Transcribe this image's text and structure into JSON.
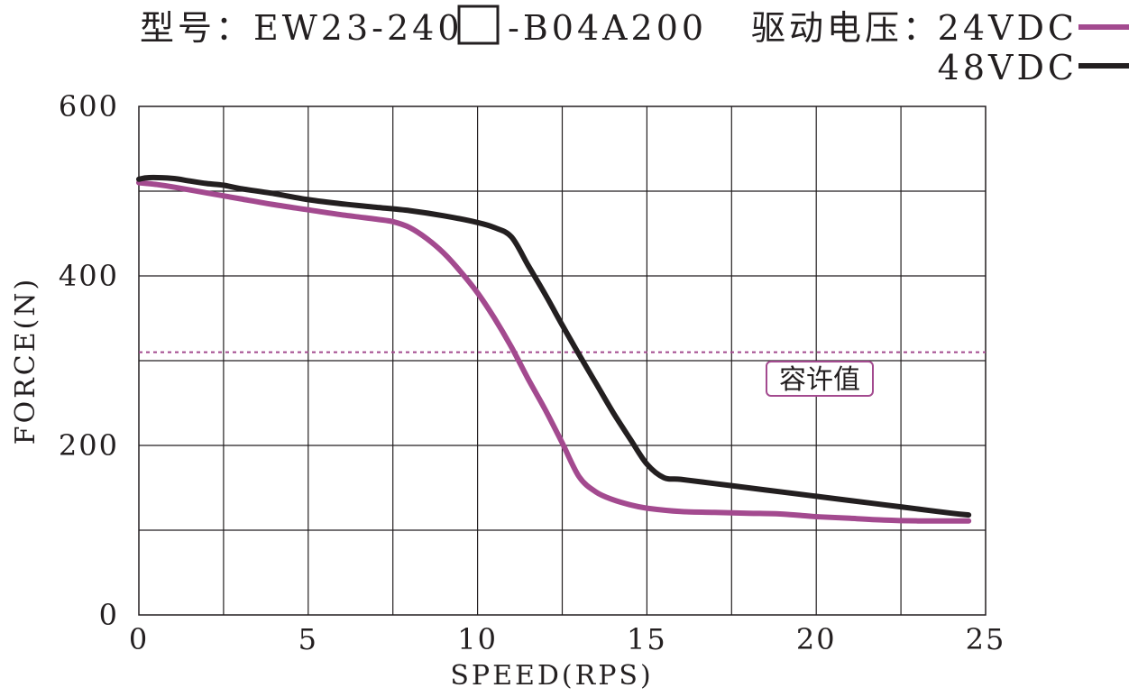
{
  "chart_data": {
    "type": "line",
    "title": {
      "model_prefix": "型号：EW23-240",
      "model_suffix": "-B04A200",
      "voltage_label": "驱动电压："
    },
    "xlabel": "SPEED(RPS)",
    "ylabel": "FORCE(N)",
    "xlim": [
      0,
      25
    ],
    "ylim": [
      0,
      600
    ],
    "x_ticks": [
      0,
      5,
      10,
      15,
      20,
      25
    ],
    "y_ticks": [
      0,
      200,
      400,
      600
    ],
    "x_tick_labels": [
      "0",
      "5",
      "10",
      "15",
      "20",
      "25"
    ],
    "y_tick_labels": [
      "0",
      "200",
      "400",
      "600"
    ],
    "grid": true,
    "grid_x_step": 2.5,
    "grid_y_step": 100,
    "legend_position": "top-right",
    "series": [
      {
        "name": "24VDC",
        "color": "#a34a8f",
        "x": [
          0,
          0.5,
          1,
          2,
          3,
          4,
          5,
          6,
          7,
          7.5,
          8,
          8.5,
          9,
          9.5,
          10,
          10.5,
          11,
          11.5,
          12,
          12.5,
          13,
          13.5,
          14,
          14.5,
          15,
          16,
          17,
          18,
          19,
          20,
          21,
          22,
          23,
          24,
          24.5
        ],
        "values": [
          510,
          508,
          505,
          498,
          491,
          484,
          478,
          472,
          467,
          464,
          457,
          444,
          427,
          405,
          380,
          350,
          316,
          278,
          242,
          203,
          163,
          145,
          136,
          130,
          126,
          122,
          121,
          120,
          119,
          116,
          114,
          112,
          111,
          111,
          111
        ]
      },
      {
        "name": "48VDC",
        "color": "#231f20",
        "x": [
          0,
          0.3,
          1,
          1.5,
          2,
          2.5,
          3,
          4,
          5,
          6,
          7,
          8,
          9,
          10,
          10.5,
          11,
          11.5,
          12,
          12.5,
          13,
          13.5,
          14,
          14.5,
          15,
          15.5,
          16,
          17,
          18,
          19,
          20,
          21,
          22,
          23,
          24,
          24.5
        ],
        "values": [
          514,
          516,
          515,
          512,
          509,
          507,
          503,
          497,
          490,
          485,
          481,
          477,
          471,
          463,
          457,
          446,
          412,
          378,
          342,
          307,
          273,
          239,
          208,
          178,
          162,
          160,
          155,
          150,
          145,
          140,
          135,
          130,
          125,
          120,
          118
        ]
      }
    ],
    "reference_line": {
      "value": 310,
      "label": "容许值",
      "color": "#a34a8f"
    }
  }
}
